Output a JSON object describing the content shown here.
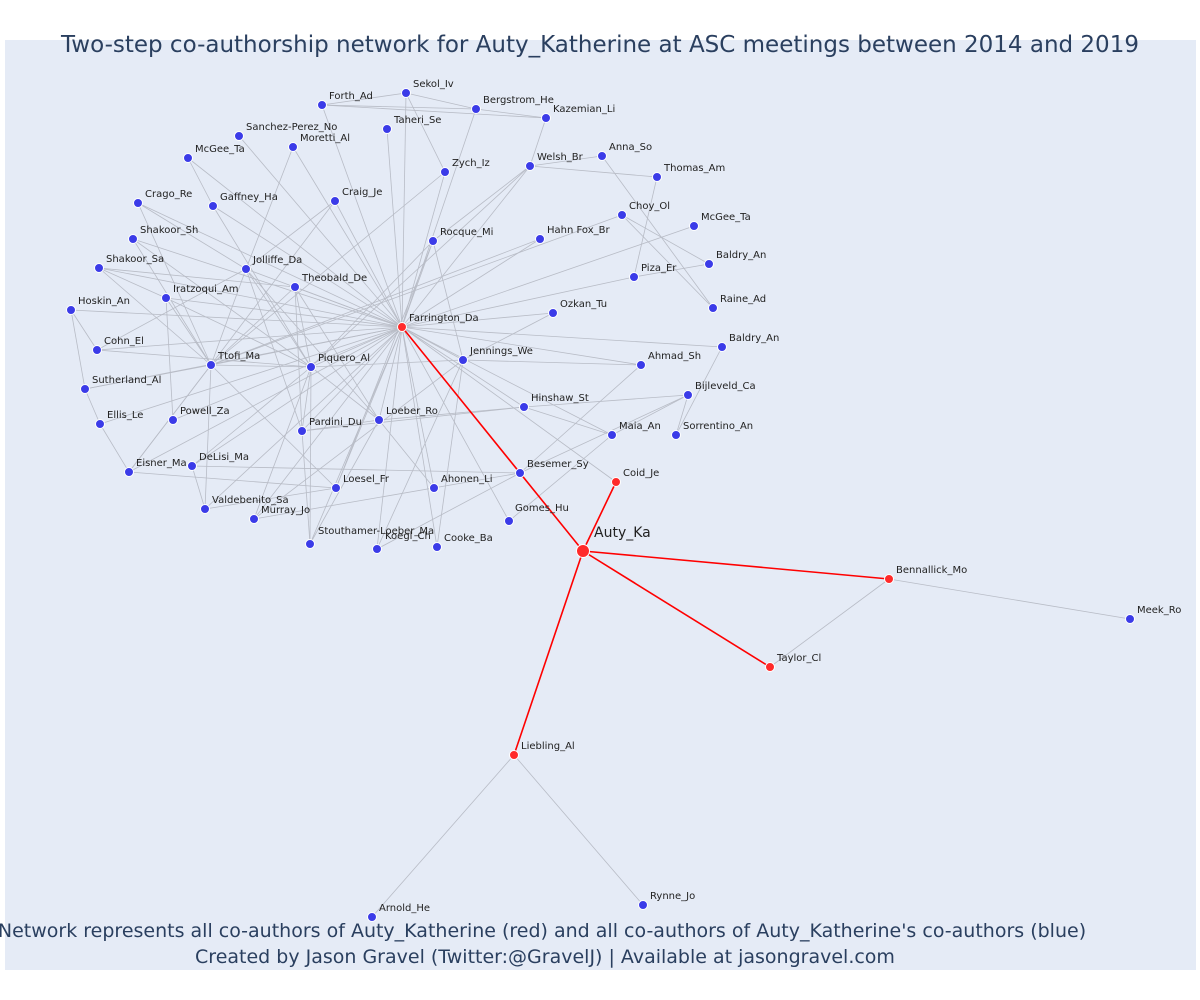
{
  "title": "Two-step co-authorship network for Auty_Katherine at ASC meetings between 2014 and 2019",
  "footnote_line1": "Network represents all co-authors of Auty_Katherine (red) and all co-authors of Auty_Katherine's co-authors (blue)",
  "footnote_line2": "Created by Jason Gravel (Twitter:@GravelJ) | Available at jasongravel.com",
  "colors": {
    "background": "#e5ebf6",
    "edge": "#b8bcc6",
    "focus_edge": "#ff0000",
    "coauthor": "#ff2a2a",
    "second_step": "#3b3be8",
    "title": "#2a3f5f"
  },
  "chart_data": {
    "type": "network",
    "ego": "Auty_Ka",
    "nodes": [
      {
        "id": "auty",
        "label": "Auty_Ka",
        "group": "ego"
      },
      {
        "id": "farrington",
        "label": "Farrington_Da",
        "group": "coauthor"
      },
      {
        "id": "coid",
        "label": "Coid_Je",
        "group": "coauthor"
      },
      {
        "id": "bennallick",
        "label": "Bennallick_Mo",
        "group": "coauthor"
      },
      {
        "id": "taylor",
        "label": "Taylor_Cl",
        "group": "coauthor"
      },
      {
        "id": "liebling",
        "label": "Liebling_Al",
        "group": "coauthor"
      },
      {
        "id": "meek",
        "label": "Meek_Ro",
        "group": "second-step"
      },
      {
        "id": "arnold",
        "label": "Arnold_He",
        "group": "second-step"
      },
      {
        "id": "rynne",
        "label": "Rynne_Jo",
        "group": "second-step"
      },
      {
        "id": "sekol",
        "label": "Sekol_Iv",
        "group": "second-step"
      },
      {
        "id": "forth",
        "label": "Forth_Ad",
        "group": "second-step"
      },
      {
        "id": "bergstrom",
        "label": "Bergstrom_He",
        "group": "second-step"
      },
      {
        "id": "kazemian",
        "label": "Kazemian_Li",
        "group": "second-step"
      },
      {
        "id": "taheri",
        "label": "Taheri_Se",
        "group": "second-step"
      },
      {
        "id": "sanchez",
        "label": "Sanchez-Perez_No",
        "group": "second-step"
      },
      {
        "id": "moretti",
        "label": "Moretti_Al",
        "group": "second-step"
      },
      {
        "id": "mcgee1",
        "label": "McGee_Ta",
        "group": "second-step"
      },
      {
        "id": "zych",
        "label": "Zych_Iz",
        "group": "second-step"
      },
      {
        "id": "welsh",
        "label": "Welsh_Br",
        "group": "second-step"
      },
      {
        "id": "anna",
        "label": "Anna_So",
        "group": "second-step"
      },
      {
        "id": "thomas",
        "label": "Thomas_Am",
        "group": "second-step"
      },
      {
        "id": "crago",
        "label": "Crago_Re",
        "group": "second-step"
      },
      {
        "id": "gaffney",
        "label": "Gaffney_Ha",
        "group": "second-step"
      },
      {
        "id": "craig",
        "label": "Craig_Je",
        "group": "second-step"
      },
      {
        "id": "choy",
        "label": "Choy_Ol",
        "group": "second-step"
      },
      {
        "id": "mcgee2",
        "label": "McGee_Ta",
        "group": "second-step"
      },
      {
        "id": "shakoorSh",
        "label": "Shakoor_Sh",
        "group": "second-step"
      },
      {
        "id": "rocque",
        "label": "Rocque_Mi",
        "group": "second-step"
      },
      {
        "id": "hahn",
        "label": "Hahn Fox_Br",
        "group": "second-step"
      },
      {
        "id": "baldry1",
        "label": "Baldry_An",
        "group": "second-step"
      },
      {
        "id": "shakoorSa",
        "label": "Shakoor_Sa",
        "group": "second-step"
      },
      {
        "id": "jolliffe",
        "label": "Jolliffe_Da",
        "group": "second-step"
      },
      {
        "id": "piza",
        "label": "Piza_Er",
        "group": "second-step"
      },
      {
        "id": "theobald",
        "label": "Theobald_De",
        "group": "second-step"
      },
      {
        "id": "iratzoqui",
        "label": "Iratzoqui_Am",
        "group": "second-step"
      },
      {
        "id": "hoskin",
        "label": "Hoskin_An",
        "group": "second-step"
      },
      {
        "id": "raine",
        "label": "Raine_Ad",
        "group": "second-step"
      },
      {
        "id": "ozkan",
        "label": "Ozkan_Tu",
        "group": "second-step"
      },
      {
        "id": "baldry2",
        "label": "Baldry_An",
        "group": "second-step"
      },
      {
        "id": "cohn",
        "label": "Cohn_El",
        "group": "second-step"
      },
      {
        "id": "jennings",
        "label": "Jennings_We",
        "group": "second-step"
      },
      {
        "id": "ttofi",
        "label": "Ttofi_Ma",
        "group": "second-step"
      },
      {
        "id": "piquero",
        "label": "Piquero_Al",
        "group": "second-step"
      },
      {
        "id": "ahmad",
        "label": "Ahmad_Sh",
        "group": "second-step"
      },
      {
        "id": "sutherland",
        "label": "Sutherland_Al",
        "group": "second-step"
      },
      {
        "id": "bijleveld",
        "label": "Bijleveld_Ca",
        "group": "second-step"
      },
      {
        "id": "hinshaw",
        "label": "Hinshaw_St",
        "group": "second-step"
      },
      {
        "id": "powell",
        "label": "Powell_Za",
        "group": "second-step"
      },
      {
        "id": "ellis",
        "label": "Ellis_Le",
        "group": "second-step"
      },
      {
        "id": "loeber",
        "label": "Loeber_Ro",
        "group": "second-step"
      },
      {
        "id": "pardini",
        "label": "Pardini_Du",
        "group": "second-step"
      },
      {
        "id": "maia",
        "label": "Maia_An",
        "group": "second-step"
      },
      {
        "id": "sorrentino",
        "label": "Sorrentino_An",
        "group": "second-step"
      },
      {
        "id": "delisi",
        "label": "DeLisi_Ma",
        "group": "second-step"
      },
      {
        "id": "eisner",
        "label": "Eisner_Ma",
        "group": "second-step"
      },
      {
        "id": "besemer",
        "label": "Besemer_Sy",
        "group": "second-step"
      },
      {
        "id": "loesel",
        "label": "Loesel_Fr",
        "group": "second-step"
      },
      {
        "id": "ahonen",
        "label": "Ahonen_Li",
        "group": "second-step"
      },
      {
        "id": "valdebenito",
        "label": "Valdebenito_Sa",
        "group": "second-step"
      },
      {
        "id": "murray",
        "label": "Murray_Jo",
        "group": "second-step"
      },
      {
        "id": "gomes",
        "label": "Gomes_Hu",
        "group": "second-step"
      },
      {
        "id": "stouthamer",
        "label": "Stouthamer-Loeber_Ma",
        "group": "second-step"
      },
      {
        "id": "koegl",
        "label": "Koegl_Ch",
        "group": "second-step"
      },
      {
        "id": "cooke",
        "label": "Cooke_Ba",
        "group": "second-step"
      }
    ],
    "edges": [
      [
        "auty",
        "farrington"
      ],
      [
        "auty",
        "coid"
      ],
      [
        "auty",
        "bennallick"
      ],
      [
        "auty",
        "taylor"
      ],
      [
        "auty",
        "liebling"
      ],
      [
        "farrington",
        "coid"
      ],
      [
        "bennallick",
        "taylor"
      ],
      [
        "bennallick",
        "meek"
      ],
      [
        "liebling",
        "arnold"
      ],
      [
        "liebling",
        "rynne"
      ],
      [
        "farrington",
        "sekol"
      ],
      [
        "farrington",
        "forth"
      ],
      [
        "farrington",
        "taheri"
      ],
      [
        "farrington",
        "sanchez"
      ],
      [
        "farrington",
        "moretti"
      ],
      [
        "farrington",
        "mcgee1"
      ],
      [
        "farrington",
        "zych"
      ],
      [
        "farrington",
        "welsh"
      ],
      [
        "farrington",
        "crago"
      ],
      [
        "farrington",
        "gaffney"
      ],
      [
        "farrington",
        "craig"
      ],
      [
        "farrington",
        "shakoorSh"
      ],
      [
        "farrington",
        "rocque"
      ],
      [
        "farrington",
        "hahn"
      ],
      [
        "farrington",
        "mcgee2"
      ],
      [
        "farrington",
        "shakoorSa"
      ],
      [
        "farrington",
        "jolliffe"
      ],
      [
        "farrington",
        "piza"
      ],
      [
        "farrington",
        "theobald"
      ],
      [
        "farrington",
        "iratzoqui"
      ],
      [
        "farrington",
        "hoskin"
      ],
      [
        "farrington",
        "ozkan"
      ],
      [
        "farrington",
        "baldry2"
      ],
      [
        "farrington",
        "cohn"
      ],
      [
        "farrington",
        "jennings"
      ],
      [
        "farrington",
        "ttofi"
      ],
      [
        "farrington",
        "piquero"
      ],
      [
        "farrington",
        "ahmad"
      ],
      [
        "farrington",
        "sutherland"
      ],
      [
        "farrington",
        "hinshaw"
      ],
      [
        "farrington",
        "powell"
      ],
      [
        "farrington",
        "ellis"
      ],
      [
        "farrington",
        "loeber"
      ],
      [
        "farrington",
        "pardini"
      ],
      [
        "farrington",
        "maia"
      ],
      [
        "farrington",
        "delisi"
      ],
      [
        "farrington",
        "eisner"
      ],
      [
        "farrington",
        "besemer"
      ],
      [
        "farrington",
        "loesel"
      ],
      [
        "farrington",
        "ahonen"
      ],
      [
        "farrington",
        "valdebenito"
      ],
      [
        "farrington",
        "murray"
      ],
      [
        "farrington",
        "gomes"
      ],
      [
        "farrington",
        "stouthamer"
      ],
      [
        "farrington",
        "koegl"
      ],
      [
        "farrington",
        "cooke"
      ],
      [
        "farrington",
        "bergstrom"
      ],
      [
        "sekol",
        "forth"
      ],
      [
        "sekol",
        "bergstrom"
      ],
      [
        "sekol",
        "zych"
      ],
      [
        "forth",
        "bergstrom"
      ],
      [
        "bergstrom",
        "kazemian"
      ],
      [
        "forth",
        "kazemian"
      ],
      [
        "kazemian",
        "welsh"
      ],
      [
        "welsh",
        "anna"
      ],
      [
        "welsh",
        "thomas"
      ],
      [
        "anna",
        "raine"
      ],
      [
        "thomas",
        "piza"
      ],
      [
        "choy",
        "raine"
      ],
      [
        "choy",
        "baldry1"
      ],
      [
        "piza",
        "baldry1"
      ],
      [
        "welsh",
        "rocque"
      ],
      [
        "welsh",
        "piquero"
      ],
      [
        "choy",
        "ttofi"
      ],
      [
        "hahn",
        "ttofi"
      ],
      [
        "rocque",
        "piquero"
      ],
      [
        "rocque",
        "loesel"
      ],
      [
        "zych",
        "ttofi"
      ],
      [
        "craig",
        "ttofi"
      ],
      [
        "craig",
        "jolliffe"
      ],
      [
        "moretti",
        "jolliffe"
      ],
      [
        "mcgee1",
        "gaffney"
      ],
      [
        "gaffney",
        "piquero"
      ],
      [
        "crago",
        "ttofi"
      ],
      [
        "crago",
        "jolliffe"
      ],
      [
        "shakoorSh",
        "ttofi"
      ],
      [
        "shakoorSh",
        "piquero"
      ],
      [
        "shakoorSa",
        "iratzoqui"
      ],
      [
        "shakoorSa",
        "ttofi"
      ],
      [
        "shakoorSa",
        "theobald"
      ],
      [
        "hoskin",
        "cohn"
      ],
      [
        "hoskin",
        "sutherland"
      ],
      [
        "cohn",
        "piquero"
      ],
      [
        "cohn",
        "jolliffe"
      ],
      [
        "sutherland",
        "ellis"
      ],
      [
        "sutherland",
        "ttofi"
      ],
      [
        "ellis",
        "eisner"
      ],
      [
        "eisner",
        "loesel"
      ],
      [
        "eisner",
        "ttofi"
      ],
      [
        "iratzoqui",
        "piquero"
      ],
      [
        "iratzoqui",
        "ttofi"
      ],
      [
        "iratzoqui",
        "powell"
      ],
      [
        "jolliffe",
        "ttofi"
      ],
      [
        "jolliffe",
        "loeber"
      ],
      [
        "jolliffe",
        "piquero"
      ],
      [
        "jolliffe",
        "pardini"
      ],
      [
        "theobald",
        "piquero"
      ],
      [
        "theobald",
        "loeber"
      ],
      [
        "theobald",
        "ttofi"
      ],
      [
        "theobald",
        "pardini"
      ],
      [
        "ttofi",
        "piquero"
      ],
      [
        "ttofi",
        "loesel"
      ],
      [
        "ttofi",
        "eisner"
      ],
      [
        "ttofi",
        "valdebenito"
      ],
      [
        "piquero",
        "loeber"
      ],
      [
        "piquero",
        "pardini"
      ],
      [
        "piquero",
        "jennings"
      ],
      [
        "piquero",
        "delisi"
      ],
      [
        "piquero",
        "murray"
      ],
      [
        "piquero",
        "stouthamer"
      ],
      [
        "loeber",
        "pardini"
      ],
      [
        "loeber",
        "stouthamer"
      ],
      [
        "loeber",
        "hinshaw"
      ],
      [
        "loeber",
        "ahonen"
      ],
      [
        "pardini",
        "hinshaw"
      ],
      [
        "pardini",
        "stouthamer"
      ],
      [
        "delisi",
        "valdebenito"
      ],
      [
        "delisi",
        "besemer"
      ],
      [
        "valdebenito",
        "loesel"
      ],
      [
        "murray",
        "besemer"
      ],
      [
        "murray",
        "jennings"
      ],
      [
        "jennings",
        "koegl"
      ],
      [
        "jennings",
        "ahmad"
      ],
      [
        "jennings",
        "rocque"
      ],
      [
        "hinshaw",
        "maia"
      ],
      [
        "hinshaw",
        "bijleveld"
      ],
      [
        "maia",
        "bijleveld"
      ],
      [
        "besemer",
        "ahmad"
      ],
      [
        "besemer",
        "bijleveld"
      ],
      [
        "bijleveld",
        "sorrentino"
      ],
      [
        "sorrentino",
        "baldry2"
      ],
      [
        "koegl",
        "besemer"
      ],
      [
        "gomes",
        "maia"
      ],
      [
        "ozkan",
        "jennings"
      ],
      [
        "cooke",
        "jennings"
      ]
    ]
  }
}
